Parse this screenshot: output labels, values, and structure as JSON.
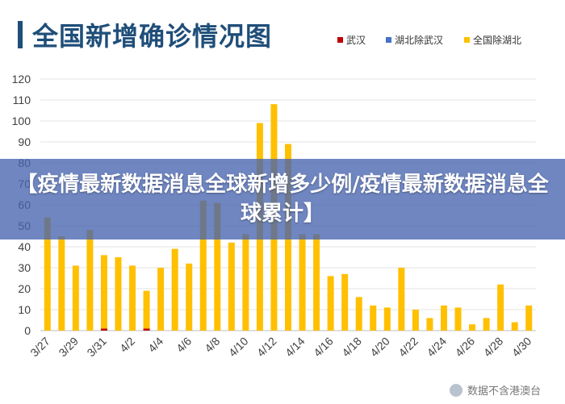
{
  "title": "全国新增确诊情况图",
  "legend": [
    {
      "name": "武汉",
      "color": "#c00000"
    },
    {
      "name": "湖北除武汉",
      "color": "#4472c4"
    },
    {
      "name": "全国除湖北",
      "color": "#ffc000"
    }
  ],
  "banner_text": "【疫情最新数据消息全球新增多少例/疫情最新数据消息全球累计】",
  "watermark": "数据不含港澳台",
  "chart_data": {
    "type": "bar",
    "title": "全国新增确诊情况图",
    "xlabel": "",
    "ylabel": "",
    "ylim": [
      0,
      120
    ],
    "yticks": [
      0,
      10,
      20,
      30,
      40,
      50,
      60,
      70,
      80,
      90,
      100,
      110,
      120
    ],
    "grid": true,
    "legend_position": "top-right",
    "stacked": true,
    "categories": [
      "3/27",
      "3/28",
      "3/29",
      "3/30",
      "3/31",
      "4/1",
      "4/2",
      "4/3",
      "4/4",
      "4/5",
      "4/6",
      "4/7",
      "4/8",
      "4/9",
      "4/10",
      "4/11",
      "4/12",
      "4/13",
      "4/14",
      "4/15",
      "4/16",
      "4/17",
      "4/18",
      "4/19",
      "4/20",
      "4/21",
      "4/22",
      "4/23",
      "4/24",
      "4/25",
      "4/26",
      "4/27",
      "4/28",
      "4/29",
      "4/30"
    ],
    "tick_labels": [
      "3/27",
      "",
      "3/29",
      "",
      "3/31",
      "",
      "4/2",
      "",
      "4/4",
      "",
      "4/6",
      "",
      "4/8",
      "",
      "4/10",
      "",
      "4/12",
      "",
      "4/14",
      "",
      "4/16",
      "",
      "4/18",
      "",
      "4/20",
      "",
      "4/22",
      "",
      "4/24",
      "",
      "4/26",
      "",
      "4/28",
      "",
      "4/30"
    ],
    "series": [
      {
        "name": "武汉",
        "color": "#c00000",
        "values": [
          0,
          0,
          0,
          0,
          1,
          0,
          0,
          1,
          0,
          0,
          0,
          0,
          0,
          0,
          0,
          0,
          0,
          0,
          0,
          0,
          0,
          0,
          0,
          0,
          0,
          0,
          0,
          0,
          0,
          0,
          0,
          0,
          0,
          0,
          0
        ]
      },
      {
        "name": "湖北除武汉",
        "color": "#4472c4",
        "values": [
          0,
          0,
          0,
          0,
          0,
          0,
          0,
          0,
          0,
          0,
          0,
          0,
          0,
          0,
          0,
          0,
          0,
          0,
          0,
          0,
          0,
          0,
          0,
          0,
          0,
          0,
          0,
          0,
          0,
          0,
          0,
          0,
          0,
          0,
          0
        ]
      },
      {
        "name": "全国除湖北",
        "color": "#ffc000",
        "values": [
          54,
          45,
          31,
          48,
          35,
          35,
          31,
          18,
          30,
          39,
          32,
          62,
          61,
          42,
          46,
          99,
          108,
          89,
          46,
          46,
          26,
          27,
          16,
          12,
          11,
          30,
          10,
          6,
          12,
          11,
          3,
          6,
          22,
          4,
          12
        ]
      }
    ]
  }
}
